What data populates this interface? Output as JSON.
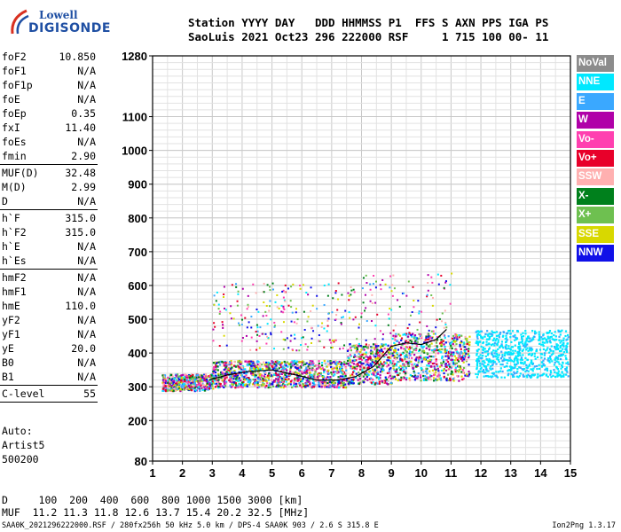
{
  "logo": {
    "line1": "Lowell",
    "line2": "DIGISONDE"
  },
  "header": {
    "line1": "Station YYYY DAY   DDD HHMMSS P1  FFS S AXN PPS IGA PS",
    "line2": "SaoLuis 2021 Oct23 296 222000 RSF     1 715 100 00- 11"
  },
  "params": {
    "group1": [
      {
        "k": "foF2",
        "v": "10.850"
      },
      {
        "k": "foF1",
        "v": "N/A"
      },
      {
        "k": "foF1p",
        "v": "N/A"
      },
      {
        "k": "foE",
        "v": "N/A"
      },
      {
        "k": "foEp",
        "v": "0.35"
      },
      {
        "k": "fxI",
        "v": "11.40"
      },
      {
        "k": "foEs",
        "v": "N/A"
      },
      {
        "k": "fmin",
        "v": "2.90"
      }
    ],
    "group2": [
      {
        "k": "MUF(D)",
        "v": "32.48"
      },
      {
        "k": "M(D)",
        "v": "2.99"
      },
      {
        "k": "D",
        "v": "N/A"
      }
    ],
    "group3": [
      {
        "k": "h`F",
        "v": "315.0"
      },
      {
        "k": "h`F2",
        "v": "315.0"
      },
      {
        "k": "h`E",
        "v": "N/A"
      },
      {
        "k": "h`Es",
        "v": "N/A"
      }
    ],
    "group4": [
      {
        "k": "hmF2",
        "v": "N/A"
      },
      {
        "k": "hmF1",
        "v": "N/A"
      },
      {
        "k": "hmE",
        "v": "110.0"
      },
      {
        "k": "yF2",
        "v": "N/A"
      },
      {
        "k": "yF1",
        "v": "N/A"
      },
      {
        "k": "yE",
        "v": "20.0"
      },
      {
        "k": "B0",
        "v": "N/A"
      },
      {
        "k": "B1",
        "v": "N/A"
      }
    ],
    "group5": [
      {
        "k": "C-level",
        "v": "55"
      }
    ]
  },
  "auto": {
    "line1": "Auto:",
    "line2": "Artist5",
    "line3": "500200"
  },
  "legend": [
    {
      "label": "NoVal",
      "color": "#8c8c8c"
    },
    {
      "label": "NNE",
      "color": "#00e8ff"
    },
    {
      "label": "E",
      "color": "#3aa8ff"
    },
    {
      "label": "W",
      "color": "#b000a8"
    },
    {
      "label": "Vo-",
      "color": "#ff40b0"
    },
    {
      "label": "Vo+",
      "color": "#e8002a"
    },
    {
      "label": "SSW",
      "color": "#ffb0b0"
    },
    {
      "label": "X-",
      "color": "#00801c"
    },
    {
      "label": "X+",
      "color": "#6ec050"
    },
    {
      "label": "SSE",
      "color": "#d8d800"
    },
    {
      "label": "NNW",
      "color": "#1010e8"
    }
  ],
  "muf": {
    "line1": "D     100  200  400  600  800 1000 1500 3000 [km]",
    "line2": "MUF  11.2 11.3 11.8 12.6 13.7 15.4 20.2 32.5 [MHz]"
  },
  "footer": {
    "left": "SAA0K_2021296222000.RSF / 280fx256h 50 kHz 5.0 km / DPS-4 SAA0K 903 / 2.6 S 315.8 E",
    "right": "Ion2Png 1.3.17"
  },
  "chart_data": {
    "type": "scatter",
    "title": "",
    "xlabel": "",
    "ylabel": "",
    "xlim": [
      1,
      15
    ],
    "ylim": [
      80,
      1280
    ],
    "x_ticks": [
      1,
      2,
      3,
      4,
      5,
      6,
      7,
      8,
      9,
      10,
      11,
      12,
      13,
      14,
      15
    ],
    "y_ticks": [
      80,
      200,
      300,
      400,
      500,
      600,
      700,
      800,
      900,
      1000,
      1100,
      1280
    ],
    "grid": true,
    "trace": {
      "x": [
        2.9,
        3.5,
        4.2,
        5.0,
        5.8,
        6.5,
        7.2,
        7.8,
        8.4,
        9.0,
        9.5,
        10.0,
        10.5,
        10.85
      ],
      "y": [
        320,
        335,
        345,
        350,
        335,
        320,
        320,
        330,
        360,
        420,
        430,
        425,
        440,
        470
      ]
    },
    "regions": [
      {
        "name": "NNE",
        "x": [
          12.0,
          14.9
        ],
        "y": [
          330,
          470
        ],
        "color": "#00e8ff"
      },
      {
        "name": "Vo-",
        "x": [
          1.3,
          11.5
        ],
        "y": [
          290,
          400
        ],
        "color": "#ff40b0"
      },
      {
        "name": "NNW",
        "x": [
          1.3,
          4.5
        ],
        "y": [
          295,
          350
        ],
        "color": "#1010e8"
      },
      {
        "name": "W",
        "x": [
          3.0,
          11.0
        ],
        "y": [
          300,
          430
        ],
        "color": "#b000a8"
      }
    ]
  }
}
